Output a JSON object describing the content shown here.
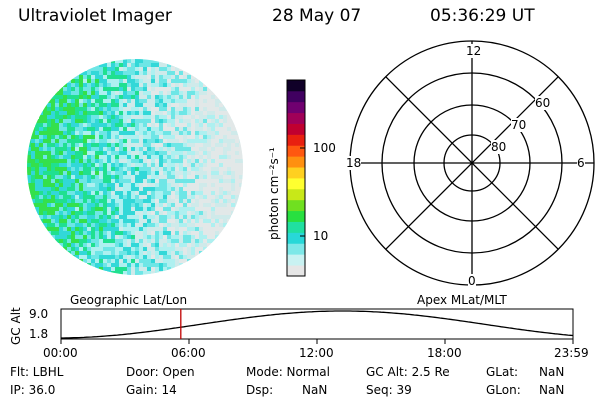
{
  "header": {
    "title": "Ultraviolet Imager",
    "date": "28 May 07",
    "time": "05:36:29 UT"
  },
  "colorbar": {
    "label": "photon cm⁻²s⁻¹",
    "tick_labels": [
      "100",
      "10"
    ],
    "colors": [
      "#e6e6e6",
      "#c9f2f2",
      "#7ee8e8",
      "#28d8d8",
      "#20e0a0",
      "#28e040",
      "#70e020",
      "#c8e818",
      "#ffff30",
      "#ffd020",
      "#ff9010",
      "#ff5810",
      "#e82010",
      "#c00030",
      "#a00058",
      "#700070",
      "#400060",
      "#100028"
    ]
  },
  "left_panel": {
    "name": "Geographic Lat/Lon"
  },
  "polar_plot": {
    "name": "Apex MLat/MLT",
    "hour_labels": {
      "top": "12",
      "left": "18",
      "right": "6",
      "bottom": "0"
    },
    "lat_labels": [
      "60",
      "70",
      "80"
    ]
  },
  "altitude_plot": {
    "ylabel": "GC Alt",
    "y_ticks": [
      "9.0",
      "1.8"
    ],
    "x_ticks": [
      "00:00",
      "06:00",
      "12:00",
      "18:00",
      "23:59"
    ],
    "marker_time_fraction": 0.234
  },
  "info": {
    "filter": "Flt: LBHL",
    "ip": "IP: 36.0",
    "door": "Door: Open",
    "gain": "Gain: 14",
    "mode": "Mode: Normal",
    "dsp_label": "Dsp:",
    "dsp_value": "NaN",
    "gc_alt": "GC Alt: 2.5 Re",
    "seq": "Seq: 39",
    "glat_label": "GLat:",
    "glat_value": "NaN",
    "glon_label": "GLon:",
    "glon_value": "NaN"
  }
}
